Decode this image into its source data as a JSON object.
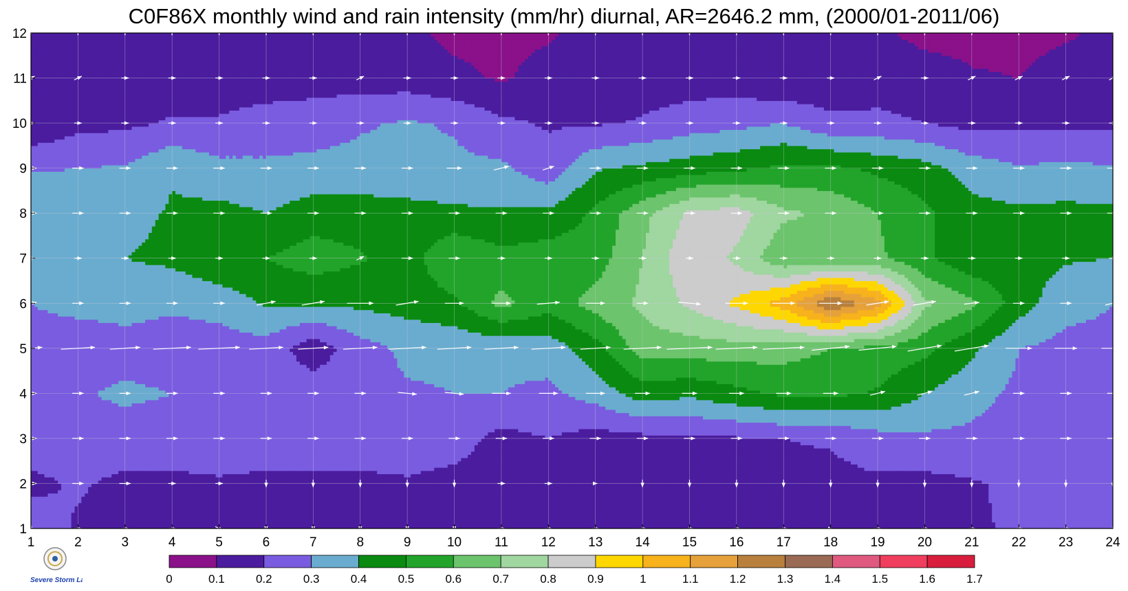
{
  "title": "C0F86X monthly wind and rain intensity (mm/hr) diurnal, AR=2646.2 mm, (2000/01-2011/06)",
  "logo": {
    "name": "severe-storm-lab-logo",
    "text": "Severe Storm Lab."
  },
  "chart_data": {
    "type": "heatmap",
    "subtype": "filled-contour with wind vectors",
    "title": "C0F86X monthly wind and rain intensity (mm/hr) diurnal, AR=2646.2 mm, (2000/01-2011/06)",
    "xlabel": "",
    "ylabel": "",
    "x_ticks": [
      1,
      2,
      3,
      4,
      5,
      6,
      7,
      8,
      9,
      10,
      11,
      12,
      13,
      14,
      15,
      16,
      17,
      18,
      19,
      20,
      21,
      22,
      23,
      24
    ],
    "y_ticks": [
      1,
      2,
      3,
      4,
      5,
      6,
      7,
      8,
      9,
      10,
      11,
      12
    ],
    "xlim": [
      1,
      24
    ],
    "ylim": [
      1,
      12
    ],
    "grid": true,
    "colorbar": {
      "placement": "bottom",
      "levels": [
        "0",
        "0.1",
        "0.2",
        "0.3",
        "0.4",
        "0.5",
        "0.6",
        "0.7",
        "0.8",
        "0.9",
        "1",
        "1.1",
        "1.2",
        "1.3",
        "1.4",
        "1.5",
        "1.6",
        "1.7"
      ],
      "colors": [
        "#8a1189",
        "#4b1c9e",
        "#7a5ce0",
        "#6aaccf",
        "#0a8a10",
        "#22a42a",
        "#6cc46c",
        "#a0d6a0",
        "#cccccc",
        "#ffd700",
        "#f7b21c",
        "#e6a13a",
        "#b8803c",
        "#9a6a55",
        "#e05a80",
        "#f03e5e",
        "#d81e3c"
      ]
    },
    "rain_grid": [
      [
        0.25,
        0.19,
        0.14,
        0.18,
        0.19,
        0.15,
        0.18,
        0.17,
        0.19,
        0.16,
        0.11,
        0.17,
        0.14,
        0.13,
        0.15,
        0.16,
        0.15,
        0.17,
        0.18,
        0.18,
        0.19,
        0.21,
        0.21,
        0.22
      ],
      [
        0.18,
        0.21,
        0.18,
        0.18,
        0.19,
        0.18,
        0.18,
        0.18,
        0.19,
        0.17,
        0.16,
        0.18,
        0.18,
        0.19,
        0.16,
        0.16,
        0.17,
        0.17,
        0.18,
        0.17,
        0.19,
        0.22,
        0.22,
        0.25
      ],
      [
        0.25,
        0.25,
        0.25,
        0.25,
        0.25,
        0.25,
        0.25,
        0.25,
        0.25,
        0.24,
        0.17,
        0.2,
        0.16,
        0.17,
        0.18,
        0.19,
        0.2,
        0.21,
        0.26,
        0.28,
        0.28,
        0.26,
        0.27,
        0.28
      ],
      [
        0.25,
        0.29,
        0.32,
        0.3,
        0.25,
        0.26,
        0.26,
        0.27,
        0.29,
        0.3,
        0.3,
        0.28,
        0.34,
        0.45,
        0.42,
        0.47,
        0.52,
        0.52,
        0.49,
        0.4,
        0.33,
        0.28,
        0.27,
        0.28
      ],
      [
        0.25,
        0.22,
        0.26,
        0.24,
        0.25,
        0.26,
        0.14,
        0.26,
        0.32,
        0.32,
        0.32,
        0.34,
        0.46,
        0.65,
        0.65,
        0.66,
        0.64,
        0.6,
        0.57,
        0.53,
        0.42,
        0.3,
        0.27,
        0.28
      ],
      [
        0.3,
        0.34,
        0.34,
        0.32,
        0.34,
        0.41,
        0.41,
        0.42,
        0.44,
        0.48,
        0.63,
        0.54,
        0.64,
        0.72,
        0.82,
        0.92,
        1.05,
        1.3,
        1.15,
        0.72,
        0.62,
        0.45,
        0.33,
        0.3
      ],
      [
        0.34,
        0.36,
        0.4,
        0.42,
        0.48,
        0.5,
        0.55,
        0.51,
        0.45,
        0.6,
        0.53,
        0.56,
        0.55,
        0.7,
        0.88,
        0.78,
        0.62,
        0.61,
        0.62,
        0.52,
        0.42,
        0.45,
        0.41,
        0.4
      ],
      [
        0.4,
        0.36,
        0.37,
        0.41,
        0.43,
        0.4,
        0.45,
        0.45,
        0.44,
        0.42,
        0.41,
        0.42,
        0.52,
        0.67,
        0.82,
        0.85,
        0.72,
        0.68,
        0.6,
        0.52,
        0.44,
        0.42,
        0.43,
        0.42
      ],
      [
        0.29,
        0.3,
        0.31,
        0.39,
        0.33,
        0.32,
        0.33,
        0.33,
        0.32,
        0.32,
        0.32,
        0.24,
        0.39,
        0.42,
        0.45,
        0.48,
        0.52,
        0.52,
        0.48,
        0.44,
        0.35,
        0.31,
        0.32,
        0.31
      ],
      [
        0.11,
        0.17,
        0.18,
        0.21,
        0.21,
        0.24,
        0.25,
        0.29,
        0.31,
        0.29,
        0.22,
        0.19,
        0.19,
        0.21,
        0.25,
        0.27,
        0.3,
        0.22,
        0.22,
        0.2,
        0.17,
        0.18,
        0.18,
        0.18
      ],
      [
        0.15,
        0.14,
        0.15,
        0.15,
        0.15,
        0.15,
        0.16,
        0.15,
        0.15,
        0.12,
        0.09,
        0.13,
        0.12,
        0.15,
        0.15,
        0.15,
        0.1,
        0.14,
        0.16,
        0.15,
        0.11,
        0.1,
        0.14,
        0.13
      ],
      [
        0.15,
        0.13,
        0.16,
        0.15,
        0.15,
        0.15,
        0.14,
        0.15,
        0.12,
        0.08,
        0.08,
        0.09,
        0.14,
        0.15,
        0.12,
        0.14,
        0.14,
        0.12,
        0.12,
        0.07,
        0.07,
        0.07,
        0.09,
        0.12
      ]
    ],
    "wind_vectors": {
      "u": [
        [
          0,
          0.2,
          0.2,
          0.2,
          0.2,
          0,
          0,
          0,
          0,
          0,
          0.2,
          0.2,
          0.2,
          0.2,
          0.2,
          0.2,
          0.2,
          0.1,
          0.2,
          0.2,
          0.2,
          0.2,
          0.2,
          0.2
        ],
        [
          0.3,
          0.3,
          0.3,
          0.2,
          0.2,
          0,
          0,
          0,
          0,
          0,
          0.2,
          0.2,
          0.1,
          0,
          0,
          0,
          0,
          0,
          0,
          0,
          0,
          0,
          0,
          0
        ],
        [
          0.3,
          0.3,
          0.3,
          0.3,
          0.3,
          0.3,
          0.3,
          0.3,
          0.3,
          0.3,
          0.3,
          0.3,
          0.3,
          0.3,
          0.3,
          0.3,
          0.3,
          0.3,
          0.3,
          0.3,
          0.3,
          0.3,
          0.3,
          0.3
        ],
        [
          0.3,
          0.3,
          0.3,
          0.3,
          0.3,
          0.3,
          0.3,
          0.3,
          0.5,
          0.5,
          0.5,
          0.5,
          0.5,
          0.4,
          0.4,
          0.4,
          0.4,
          0.4,
          0.4,
          0.4,
          0.4,
          0.3,
          0.3,
          0.3
        ],
        [
          0.6,
          0.9,
          0.8,
          1.0,
          1.1,
          0.9,
          0.8,
          0.9,
          1.0,
          0.9,
          0.9,
          0.9,
          0.8,
          1.0,
          1.2,
          1.1,
          1.1,
          1.0,
          1.0,
          0.9,
          0.9,
          0.7,
          0.6,
          0.6
        ],
        [
          0.3,
          0.3,
          0.3,
          0.3,
          0.3,
          0.5,
          0.6,
          0.7,
          0.6,
          0.5,
          0.5,
          0.6,
          0.5,
          0.3,
          0.6,
          0.6,
          0.6,
          0.6,
          0.6,
          0.6,
          0.4,
          0.3,
          0.3,
          0.4
        ],
        [
          0.2,
          0.2,
          0.2,
          0.2,
          0.2,
          0.2,
          0.2,
          0.2,
          0.3,
          0.3,
          0.2,
          0.2,
          0.2,
          0.2,
          0.2,
          0.2,
          0.2,
          0.2,
          0.2,
          0.2,
          0.2,
          0.2,
          0.2,
          0.2
        ],
        [
          0.3,
          0.3,
          0.3,
          0.3,
          0.3,
          0.3,
          0.3,
          0.3,
          0.3,
          0.3,
          0.3,
          0.3,
          0.3,
          0.3,
          0.3,
          0.3,
          0.3,
          0.3,
          0.3,
          0.3,
          0.3,
          0.3,
          0.3,
          0.3
        ],
        [
          0.3,
          0.3,
          0.3,
          0.3,
          0.3,
          0.3,
          0.3,
          0.3,
          0.3,
          0.4,
          0.4,
          0.3,
          0.3,
          0.3,
          0.3,
          0.3,
          0.3,
          0.3,
          0.3,
          0.3,
          0.3,
          0.3,
          0.3,
          0.3
        ],
        [
          0.2,
          0.2,
          0.2,
          0.2,
          0.2,
          0.2,
          0.2,
          0.2,
          0.2,
          0.2,
          0.2,
          0.2,
          0.2,
          0.2,
          0.2,
          0.2,
          0.2,
          0.2,
          0.2,
          0.2,
          0.2,
          0.2,
          0.2,
          0.2
        ],
        [
          0.2,
          0.2,
          0.2,
          0.2,
          0.2,
          0.2,
          0.2,
          0.2,
          0.2,
          0.2,
          0.2,
          0.2,
          0.2,
          0.2,
          0.2,
          0.2,
          0.2,
          0.2,
          0.2,
          0.2,
          0.2,
          0.2,
          0.2,
          0.2
        ],
        [
          0,
          0,
          0,
          0,
          0,
          0,
          0,
          0,
          0,
          0,
          0,
          0,
          0,
          0,
          0,
          0,
          0,
          0,
          0,
          0,
          0,
          0,
          0,
          0
        ]
      ],
      "v": [
        [
          0.2,
          0,
          0,
          0,
          -0.1,
          0,
          0,
          0,
          0,
          0,
          0,
          0,
          0,
          0,
          0,
          0,
          0,
          0,
          0,
          0,
          0,
          0,
          0,
          0.1
        ],
        [
          0,
          0,
          0,
          0,
          0,
          -0.2,
          -0.2,
          -0.2,
          -0.2,
          -0.2,
          0,
          0,
          0,
          -0.2,
          -0.2,
          -0.2,
          -0.2,
          -0.2,
          -0.2,
          -0.2,
          -0.2,
          -0.2,
          -0.2,
          -0.2
        ],
        [
          0,
          0,
          0,
          0,
          0,
          0,
          0,
          0,
          0,
          0,
          0,
          0,
          0,
          0,
          0,
          0,
          0,
          0,
          0,
          0,
          0,
          0,
          0,
          0
        ],
        [
          0,
          0,
          0,
          0,
          0,
          0,
          0,
          0,
          -0.05,
          -0.05,
          0,
          0,
          0,
          0,
          0,
          0,
          0,
          0,
          0.1,
          0.1,
          0.1,
          0,
          0,
          0
        ],
        [
          0.05,
          0.05,
          0.05,
          0.05,
          0.05,
          0.05,
          0.05,
          0.05,
          0.05,
          0.05,
          0.05,
          0.05,
          0.05,
          0.05,
          0.05,
          0.05,
          0.05,
          0.1,
          0.1,
          0.15,
          0.15,
          0,
          0,
          0
        ],
        [
          0.05,
          0,
          0,
          0,
          0,
          0.1,
          0.1,
          0,
          0.1,
          0,
          0,
          0.05,
          0,
          0,
          -0.05,
          0,
          0,
          0,
          0.1,
          0.1,
          0.05,
          0,
          0,
          0.1
        ],
        [
          0,
          0,
          0,
          0,
          0,
          0,
          0,
          0.1,
          0,
          0,
          0,
          0,
          0,
          0,
          0,
          0,
          0,
          0,
          0,
          0,
          0,
          0,
          0,
          0
        ],
        [
          0,
          0,
          0,
          0,
          0,
          0,
          0,
          0,
          0,
          0,
          0,
          0,
          0,
          0,
          0,
          0,
          0,
          0,
          0,
          0,
          0,
          0,
          0,
          0
        ],
        [
          0,
          0,
          0,
          0,
          0,
          0,
          0,
          0,
          0,
          0,
          0.1,
          0.1,
          0,
          0,
          0,
          0,
          0,
          0,
          0,
          0,
          0,
          0,
          0,
          0
        ],
        [
          0,
          0,
          0,
          0,
          0,
          0,
          0,
          0,
          0,
          0,
          0,
          0,
          0,
          0,
          0,
          0,
          0,
          0,
          0,
          0,
          0,
          0,
          0,
          0
        ],
        [
          0.1,
          0.1,
          0,
          0,
          0,
          0,
          0,
          0.1,
          0,
          0,
          0,
          0,
          0,
          0,
          0,
          0,
          0,
          0,
          0.1,
          0,
          0.1,
          0.1,
          0.1,
          0.1
        ],
        [
          0,
          0,
          0,
          0,
          0,
          0,
          0,
          0,
          0,
          0,
          0,
          0,
          0,
          0,
          0,
          0,
          0,
          0,
          0,
          0,
          0,
          0,
          0,
          0
        ]
      ]
    }
  }
}
